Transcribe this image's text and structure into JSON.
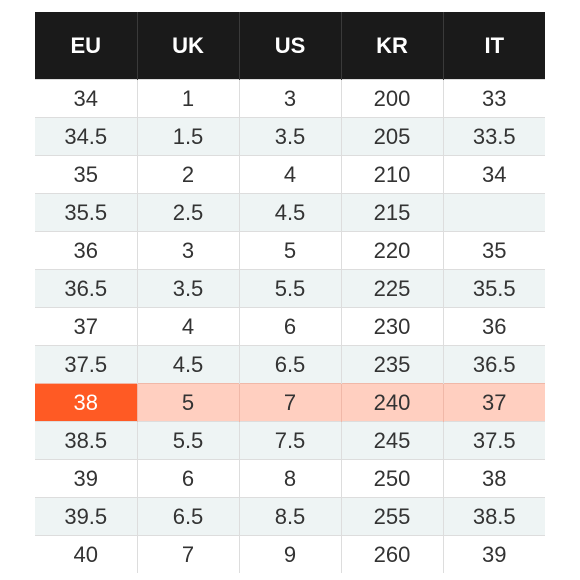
{
  "size_chart": {
    "highlight_row_index": 8,
    "headers": [
      "EU",
      "UK",
      "US",
      "KR",
      "IT"
    ],
    "rows": [
      [
        "34",
        "1",
        "3",
        "200",
        "33"
      ],
      [
        "34.5",
        "1.5",
        "3.5",
        "205",
        "33.5"
      ],
      [
        "35",
        "2",
        "4",
        "210",
        "34"
      ],
      [
        "35.5",
        "2.5",
        "4.5",
        "215",
        ""
      ],
      [
        "36",
        "3",
        "5",
        "220",
        "35"
      ],
      [
        "36.5",
        "3.5",
        "5.5",
        "225",
        "35.5"
      ],
      [
        "37",
        "4",
        "6",
        "230",
        "36"
      ],
      [
        "37.5",
        "4.5",
        "6.5",
        "235",
        "36.5"
      ],
      [
        "38",
        "5",
        "7",
        "240",
        "37"
      ],
      [
        "38.5",
        "5.5",
        "7.5",
        "245",
        "37.5"
      ],
      [
        "39",
        "6",
        "8",
        "250",
        "38"
      ],
      [
        "39.5",
        "6.5",
        "8.5",
        "255",
        "38.5"
      ],
      [
        "40",
        "7",
        "9",
        "260",
        "39"
      ]
    ],
    "colors": {
      "header_bg": "#1a1a1a",
      "header_text": "#ffffff",
      "row_alt_bg": "#eef4f4",
      "highlight_row_bg": "#ffcfc0",
      "highlight_cell_bg": "#ff5a24"
    }
  }
}
